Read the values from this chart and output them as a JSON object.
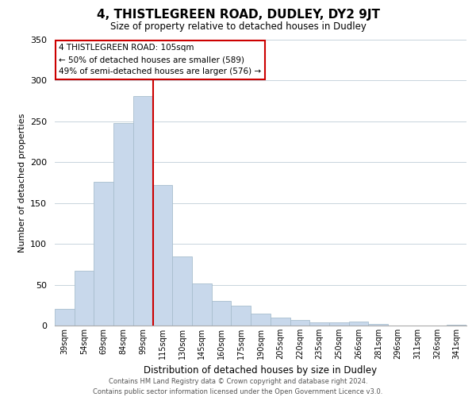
{
  "title": "4, THISTLEGREEN ROAD, DUDLEY, DY2 9JT",
  "subtitle": "Size of property relative to detached houses in Dudley",
  "xlabel": "Distribution of detached houses by size in Dudley",
  "ylabel": "Number of detached properties",
  "bar_labels": [
    "39sqm",
    "54sqm",
    "69sqm",
    "84sqm",
    "99sqm",
    "115sqm",
    "130sqm",
    "145sqm",
    "160sqm",
    "175sqm",
    "190sqm",
    "205sqm",
    "220sqm",
    "235sqm",
    "250sqm",
    "266sqm",
    "281sqm",
    "296sqm",
    "311sqm",
    "326sqm",
    "341sqm"
  ],
  "bar_values": [
    20,
    67,
    176,
    248,
    281,
    172,
    85,
    52,
    30,
    24,
    15,
    10,
    7,
    4,
    4,
    5,
    2,
    0,
    0,
    0,
    1
  ],
  "bar_color": "#c8d8eb",
  "bar_edge_color": "#a8bece",
  "vline_color": "#cc0000",
  "vline_index": 5,
  "ylim": [
    0,
    350
  ],
  "yticks": [
    0,
    50,
    100,
    150,
    200,
    250,
    300,
    350
  ],
  "annotation_title": "4 THISTLEGREEN ROAD: 105sqm",
  "annotation_line1": "← 50% of detached houses are smaller (589)",
  "annotation_line2": "49% of semi-detached houses are larger (576) →",
  "annotation_box_color": "#ffffff",
  "annotation_box_edge": "#cc0000",
  "footer_line1": "Contains HM Land Registry data © Crown copyright and database right 2024.",
  "footer_line2": "Contains public sector information licensed under the Open Government Licence v3.0.",
  "background_color": "#ffffff",
  "grid_color": "#c8d4dc"
}
